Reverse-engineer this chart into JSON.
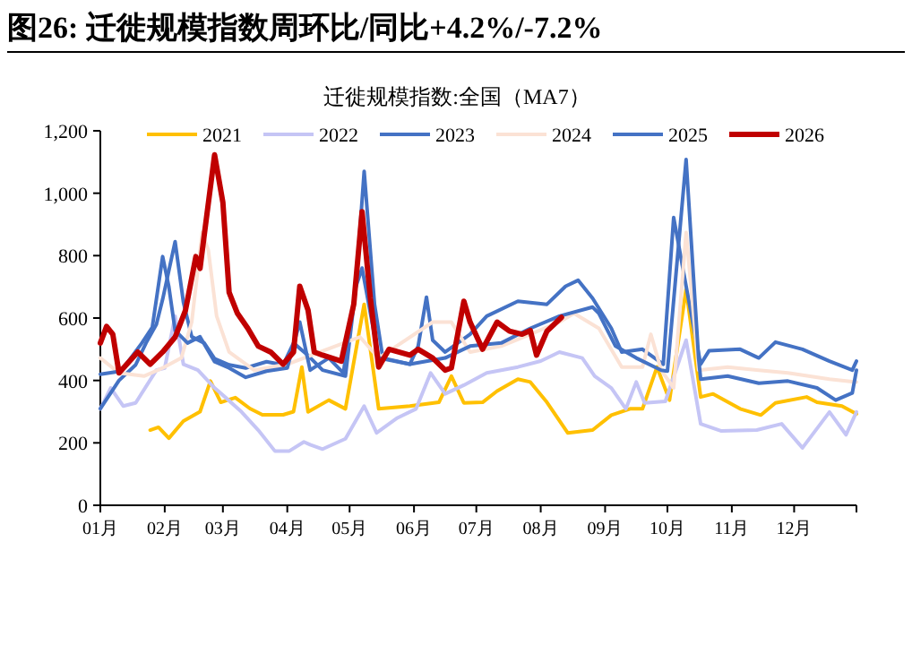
{
  "chart_data": {
    "type": "line",
    "title": "图26:  迁徙规模指数周环比/同比+4.2%/-7.2%",
    "subtitle": "迁徙规模指数:全国（MA7）",
    "xlim": [
      "--01-01",
      "--12-31"
    ],
    "ylim": [
      0,
      1200
    ],
    "yticks": [
      {
        "value": 0,
        "label": "0"
      },
      {
        "value": 200,
        "label": "200"
      },
      {
        "value": 400,
        "label": "400"
      },
      {
        "value": 600,
        "label": "600"
      },
      {
        "value": 800,
        "label": "800"
      },
      {
        "value": 1000,
        "label": "1,000"
      },
      {
        "value": 1200,
        "label": "1,200"
      }
    ],
    "xticks": [
      {
        "value": "--01-01",
        "label": "01月"
      },
      {
        "value": "--02-01",
        "label": "02月"
      },
      {
        "value": "--03-01",
        "label": "03月"
      },
      {
        "value": "--04-01",
        "label": "04月"
      },
      {
        "value": "--05-01",
        "label": "05月"
      },
      {
        "value": "--06-01",
        "label": "06月"
      },
      {
        "value": "--07-01",
        "label": "07月"
      },
      {
        "value": "--08-01",
        "label": "08月"
      },
      {
        "value": "--09-01",
        "label": "09月"
      },
      {
        "value": "--10-01",
        "label": "10月"
      },
      {
        "value": "--11-01",
        "label": "11月"
      },
      {
        "value": "--12-01",
        "label": "12月"
      },
      {
        "value": "--12-31",
        "label": null
      }
    ],
    "legend": "top",
    "grid": false,
    "marker": "none",
    "line_style": "solid",
    "series": [
      {
        "name": "2021",
        "color": "#ffc000",
        "x": [
          "--01-25",
          "--01-29",
          "--02-03",
          "--02-10",
          "--02-18",
          "--02-23",
          "--02-28",
          "--03-07",
          "--03-14",
          "--03-20",
          "--03-30",
          "--04-04",
          "--04-08",
          "--04-11",
          "--04-21",
          "--04-29",
          "--05-08",
          "--05-15",
          "--05-30",
          "--06-13",
          "--06-19",
          "--06-25",
          "--07-04",
          "--07-11",
          "--07-21",
          "--07-27",
          "--08-04",
          "--08-14",
          "--08-26",
          "--09-04",
          "--09-13",
          "--09-19",
          "--09-26",
          "--10-02",
          "--10-10",
          "--10-17",
          "--10-23",
          "--11-05",
          "--11-15",
          "--11-22",
          "--12-07",
          "--12-12",
          "--12-24",
          "--12-31"
        ],
        "values": [
          241,
          250,
          215,
          270,
          300,
          398,
          330,
          345,
          310,
          290,
          290,
          300,
          443,
          299,
          337,
          309,
          644,
          309,
          318,
          330,
          414,
          328,
          330,
          366,
          404,
          395,
          330,
          232,
          241,
          289,
          309,
          309,
          443,
          337,
          692,
          347,
          357,
          309,
          289,
          328,
          347,
          330,
          318,
          293
        ]
      },
      {
        "name": "2022",
        "color": "#c5c5f5",
        "x": [
          "--01-01",
          "--01-06",
          "--01-12",
          "--01-18",
          "--01-28",
          "--02-01",
          "--02-06",
          "--02-10",
          "--02-17",
          "--02-25",
          "--03-02",
          "--03-10",
          "--03-18",
          "--03-26",
          "--04-02",
          "--04-09",
          "--04-12",
          "--04-18",
          "--04-29",
          "--05-08",
          "--05-14",
          "--05-24",
          "--06-02",
          "--06-09",
          "--06-16",
          "--06-25",
          "--07-06",
          "--07-21",
          "--08-01",
          "--08-10",
          "--08-21",
          "--08-27",
          "--09-04",
          "--09-11",
          "--09-16",
          "--09-20",
          "--09-30",
          "--10-10",
          "--10-17",
          "--10-27",
          "--11-13",
          "--11-25",
          "--12-05",
          "--12-18",
          "--12-26",
          "--12-31"
        ],
        "values": [
          309,
          376,
          318,
          328,
          433,
          440,
          606,
          452,
          433,
          376,
          347,
          299,
          241,
          174,
          174,
          203,
          194,
          180,
          213,
          318,
          232,
          280,
          309,
          424,
          357,
          385,
          424,
          443,
          462,
          491,
          472,
          414,
          376,
          309,
          395,
          328,
          333,
          529,
          261,
          238,
          241,
          261,
          184,
          299,
          226,
          299
        ]
      },
      {
        "name": "2023",
        "color": "#4472c4",
        "x": [
          "--01-01",
          "--01-10",
          "--01-18",
          "--01-23",
          "--01-28",
          "--01-31",
          "--02-06",
          "--02-10",
          "--02-14",
          "--02-20",
          "--02-25",
          "--03-04",
          "--03-12",
          "--03-22",
          "--03-30",
          "--04-04",
          "--04-11",
          "--04-18",
          "--04-29",
          "--05-04",
          "--05-08",
          "--05-13",
          "--05-17",
          "--05-30",
          "--06-03",
          "--06-07",
          "--06-10",
          "--06-16",
          "--06-28",
          "--07-06",
          "--07-21",
          "--08-04",
          "--08-13",
          "--08-19",
          "--08-26",
          "--09-04",
          "--09-09",
          "--09-19",
          "--09-29",
          "--10-04",
          "--10-10",
          "--10-17",
          "--10-21",
          "--11-05",
          "--11-14",
          "--11-22",
          "--12-05",
          "--12-18",
          "--12-29",
          "--12-31"
        ],
        "values": [
          310,
          400,
          450,
          520,
          580,
          660,
          845,
          650,
          540,
          520,
          470,
          450,
          440,
          460,
          450,
          520,
          480,
          433,
          414,
          700,
          1070,
          644,
          472,
          452,
          510,
          667,
          529,
          491,
          548,
          606,
          654,
          644,
          702,
          721,
          663,
          567,
          491,
          500,
          452,
          922,
          702,
          452,
          495,
          500,
          472,
          523,
          500,
          462,
          433,
          462
        ]
      },
      {
        "name": "2024",
        "color": "#fbe2d5",
        "x": [
          "--01-01",
          "--01-10",
          "--01-22",
          "--01-31",
          "--02-09",
          "--02-14",
          "--02-19",
          "--02-22",
          "--02-26",
          "--03-04",
          "--03-16",
          "--04-01",
          "--05-06",
          "--05-15",
          "--06-10",
          "--06-19",
          "--06-28",
          "--07-13",
          "--07-27",
          "--08-10",
          "--08-17",
          "--08-29",
          "--09-09",
          "--09-19",
          "--09-23",
          "--09-28",
          "--10-04",
          "--10-10",
          "--10-16",
          "--10-30",
          "--11-14",
          "--11-28",
          "--12-18",
          "--12-31"
        ],
        "values": [
          472,
          424,
          414,
          440,
          472,
          587,
          874,
          817,
          606,
          491,
          433,
          452,
          539,
          472,
          587,
          587,
          491,
          510,
          548,
          587,
          615,
          567,
          443,
          443,
          548,
          433,
          376,
          874,
          433,
          443,
          433,
          424,
          404,
          395
        ]
      },
      {
        "name": "2025",
        "color": "#4472c4",
        "x": [
          "--01-01",
          "--01-11",
          "--01-21",
          "--01-26",
          "--01-31",
          "--02-03",
          "--02-06",
          "--02-12",
          "--02-18",
          "--02-25",
          "--03-04",
          "--03-12",
          "--03-22",
          "--04-01",
          "--04-07",
          "--04-12",
          "--04-21",
          "--04-28",
          "--05-04",
          "--05-07",
          "--05-15",
          "--05-30",
          "--06-16",
          "--06-28",
          "--07-13",
          "--07-27",
          "--08-10",
          "--08-26",
          "--08-29",
          "--09-06",
          "--09-16",
          "--09-28",
          "--10-01",
          "--10-10",
          "--10-16",
          "--10-17",
          "--10-30",
          "--11-14",
          "--11-28",
          "--12-12",
          "--12-21",
          "--12-29",
          "--12-31"
        ],
        "values": [
          420,
          430,
          520,
          570,
          797,
          700,
          560,
          520,
          540,
          460,
          440,
          410,
          430,
          440,
          587,
          433,
          472,
          424,
          700,
          760,
          472,
          452,
          472,
          510,
          520,
          567,
          606,
          635,
          615,
          510,
          472,
          433,
          430,
          1108,
          472,
          404,
          414,
          391,
          398,
          376,
          337,
          360,
          433
        ]
      },
      {
        "name": "2026",
        "color": "#c00000",
        "x": [
          "--01-01",
          "--01-04",
          "--01-07",
          "--01-10",
          "--01-19",
          "--01-25",
          "--01-31",
          "--02-06",
          "--02-11",
          "--02-16",
          "--02-18",
          "--02-20",
          "--02-25",
          "--03-01",
          "--03-04",
          "--03-08",
          "--03-13",
          "--03-18",
          "--03-24",
          "--03-30",
          "--04-04",
          "--04-07",
          "--04-11",
          "--04-14",
          "--04-18",
          "--04-27",
          "--05-03",
          "--05-07",
          "--05-11",
          "--05-15",
          "--05-20",
          "--05-30",
          "--06-03",
          "--06-10",
          "--06-16",
          "--06-19",
          "--06-25",
          "--06-28",
          "--07-04",
          "--07-11",
          "--07-17",
          "--07-23",
          "--07-27",
          "--07-30",
          "--08-04",
          "--08-11"
        ],
        "values": [
          520,
          573,
          548,
          424,
          491,
          452,
          491,
          539,
          625,
          797,
          759,
          865,
          1123,
          970,
          682,
          615,
          567,
          510,
          491,
          452,
          491,
          702,
          625,
          491,
          481,
          462,
          644,
          941,
          663,
          443,
          500,
          481,
          500,
          472,
          433,
          440,
          654,
          587,
          500,
          587,
          558,
          548,
          560,
          481,
          558,
          602
        ]
      }
    ]
  }
}
